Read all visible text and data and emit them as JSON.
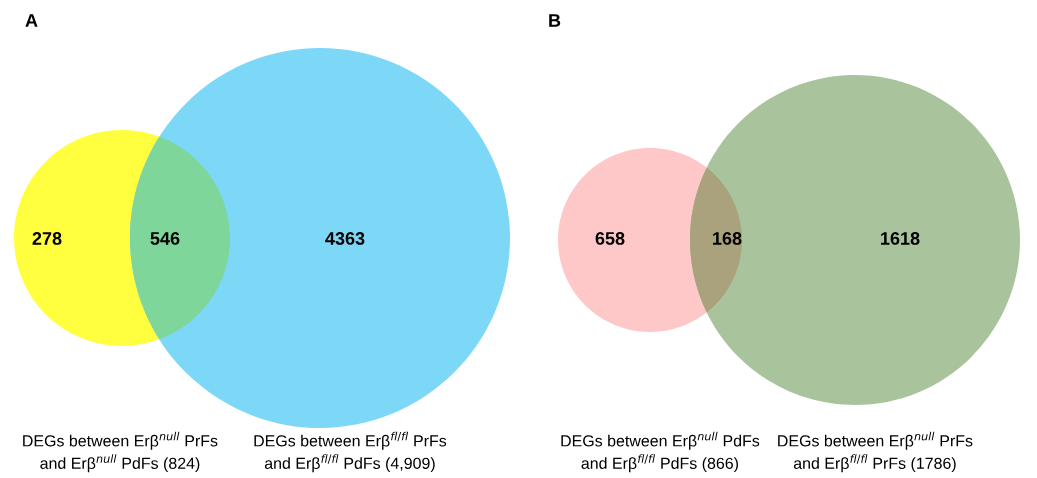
{
  "chart_data": [
    {
      "type": "other",
      "title": "A",
      "values": [
        278,
        546,
        4363
      ],
      "colors": [
        "#ffff40",
        "#7ed69a",
        "#7dd7f6"
      ],
      "data_labels": true,
      "annotations": [
        "DEGs between Erβ$^{null}$ PrFs\nand Erβ$^{null}$ PdFs (824)",
        "DEGs between Erβ$^{fl/fl}$ PrFs\nand Erβ$^{fl/fl}$ PdFs (4,909)"
      ]
    },
    {
      "type": "other",
      "title": "B",
      "values": [
        658,
        168,
        1618
      ],
      "colors": [
        "#fec8c8",
        "#a9a27c",
        "#a9c49c"
      ],
      "data_labels": true,
      "annotations": [
        "DEGs between Erβ$^{null}$ PdFs\nand Erβ$^{fl/fl}$ PdFs (866)",
        "DEGs between Erβ$^{null}$ PrFs\nand Erβ$^{fl/fl}$ PrFs (1786)"
      ]
    }
  ]
}
